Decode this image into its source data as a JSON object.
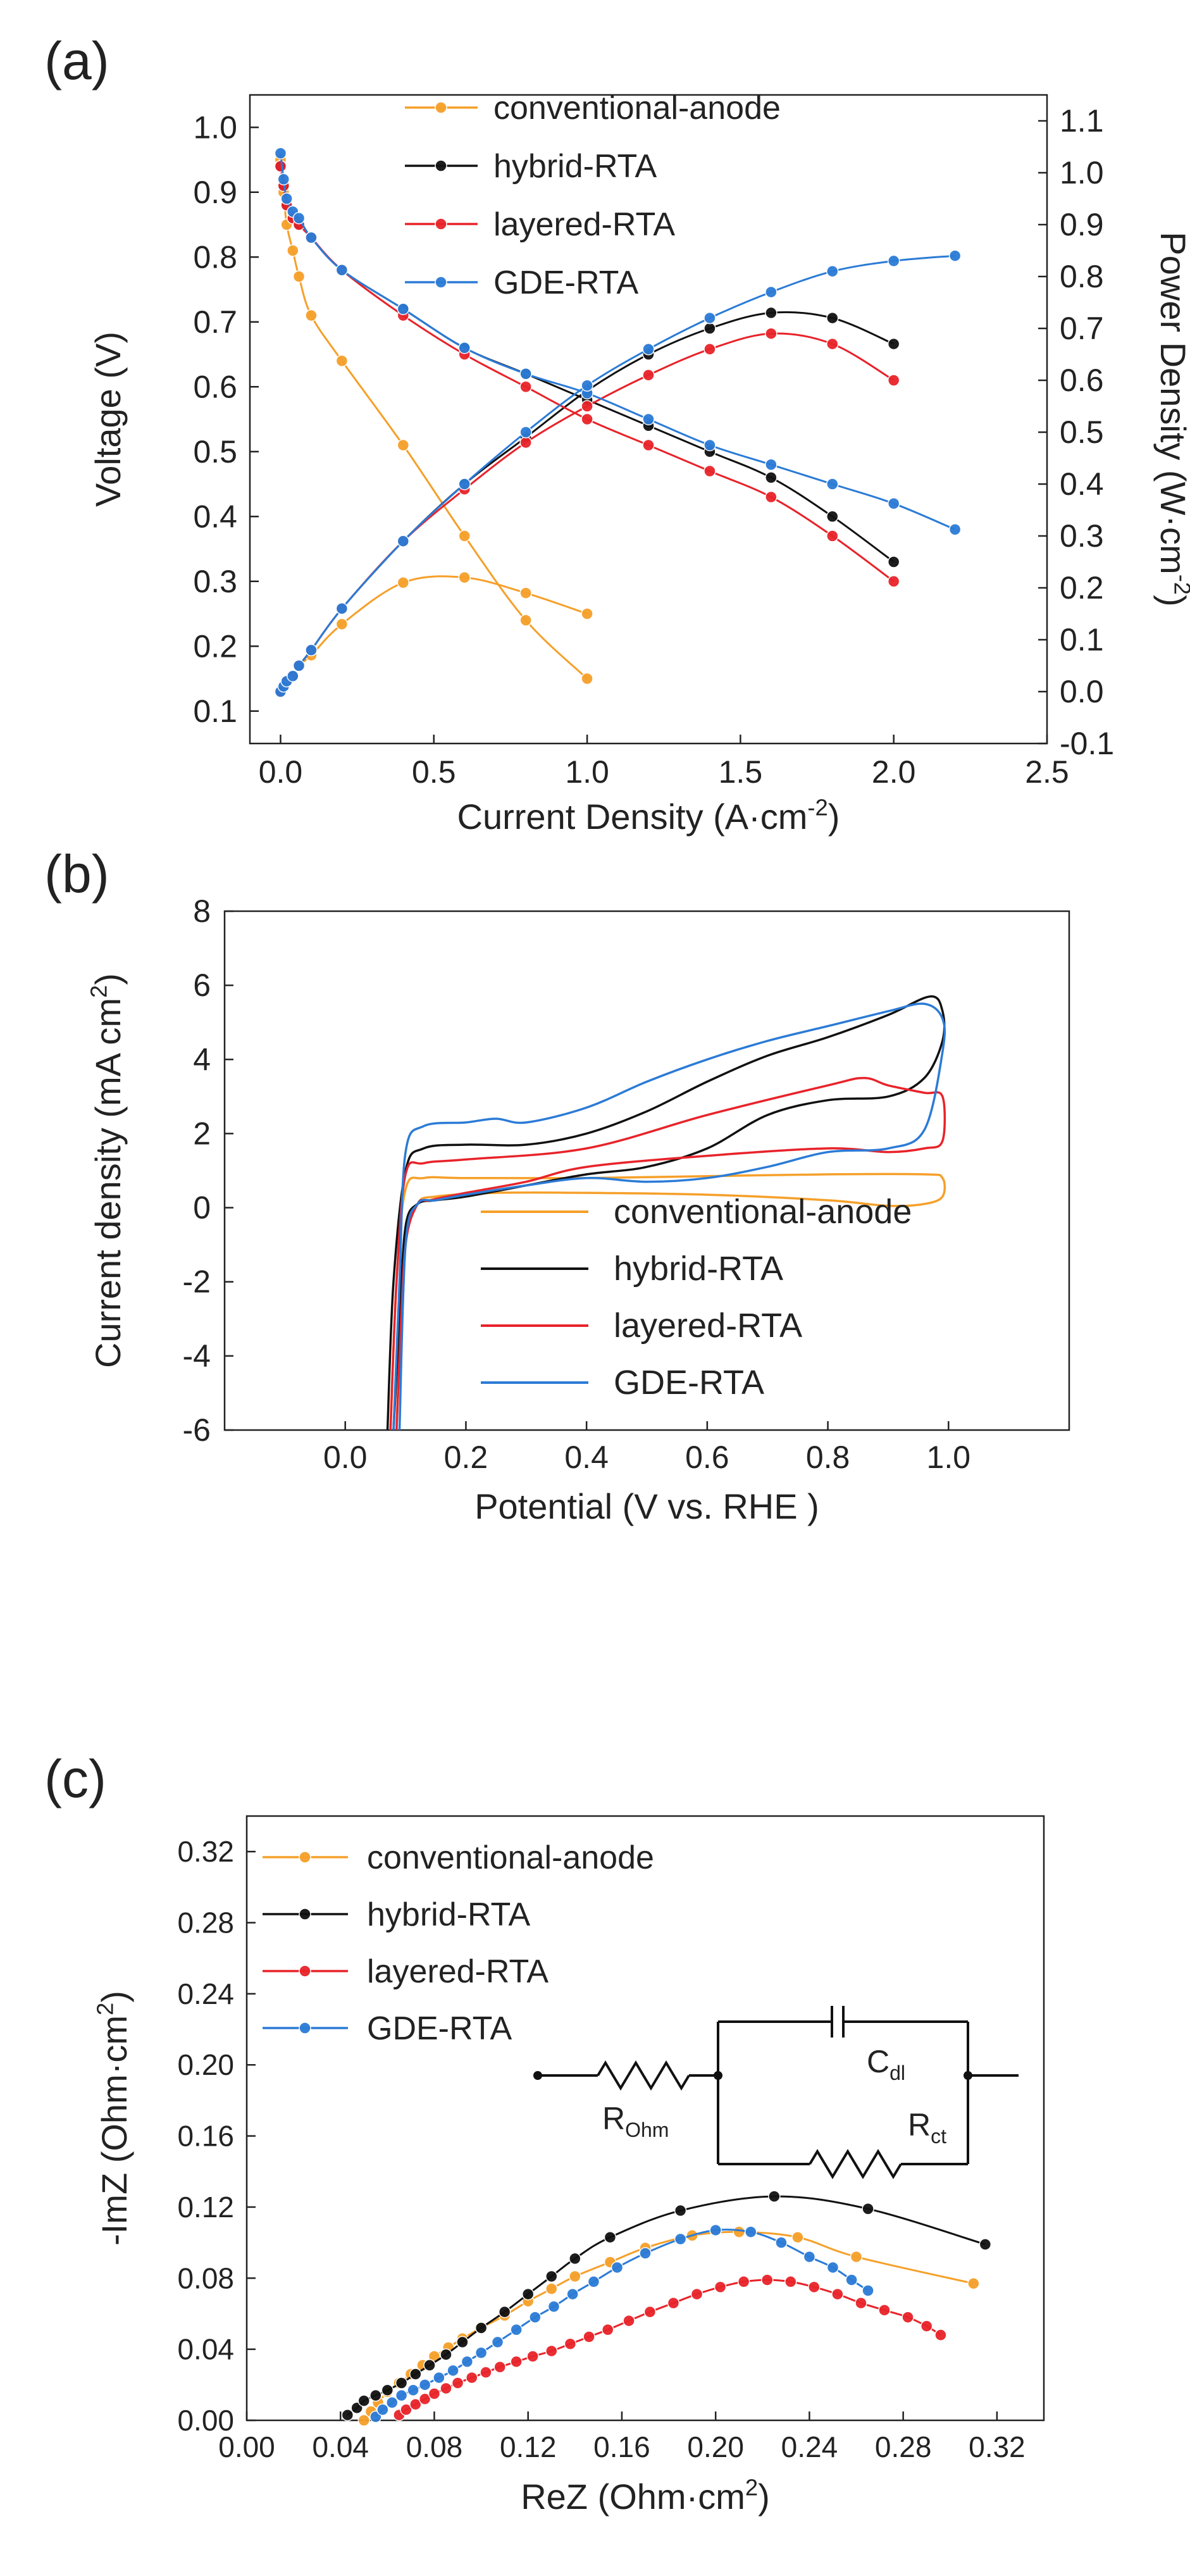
{
  "colors": {
    "orange": "#f5a02a",
    "black": "#111111",
    "red": "#e8232a",
    "blue": "#2b7bd6"
  },
  "chart_data": [
    {
      "panel_label": "(a)",
      "type": "line",
      "title": "",
      "xlabel": "Current Density (A·cm",
      "xlabel_sup": "-2",
      "xlabel_end": ")",
      "ylabel": "Voltage (V)",
      "y2label": "Power Density (W·cm",
      "y2label_sup": "-2",
      "y2label_end": ")",
      "xlim": [
        -0.1,
        2.5
      ],
      "ylim": [
        0.05,
        1.05
      ],
      "y2lim": [
        -0.1,
        1.15
      ],
      "x_ticks": [
        "0.0",
        "0.5",
        "1.0",
        "1.5",
        "2.0",
        "2.5"
      ],
      "y_ticks": [
        "0.1",
        "0.2",
        "0.3",
        "0.4",
        "0.5",
        "0.6",
        "0.7",
        "0.8",
        "0.9",
        "1.0"
      ],
      "y2_ticks": [
        "-0.1",
        "0.0",
        "0.1",
        "0.2",
        "0.3",
        "0.4",
        "0.5",
        "0.6",
        "0.7",
        "0.8",
        "0.9",
        "1.0",
        "1.1"
      ],
      "legend": [
        "conventional-anode",
        "hybrid-RTA",
        "layered-RTA",
        "GDE-RTA"
      ],
      "series": [
        {
          "name": "conventional-anode",
          "color": "orange",
          "voltage": {
            "x": [
              0,
              0.01,
              0.02,
              0.04,
              0.06,
              0.1,
              0.2,
              0.4,
              0.6,
              0.8,
              1.0
            ],
            "y": [
              0.95,
              0.9,
              0.85,
              0.81,
              0.77,
              0.71,
              0.64,
              0.51,
              0.37,
              0.24,
              0.15
            ]
          },
          "power": {
            "x": [
              0,
              0.01,
              0.02,
              0.04,
              0.06,
              0.1,
              0.2,
              0.4,
              0.6,
              0.8,
              1.0
            ],
            "y": [
              0,
              0.01,
              0.02,
              0.03,
              0.05,
              0.07,
              0.13,
              0.21,
              0.22,
              0.19,
              0.15
            ]
          }
        },
        {
          "name": "hybrid-RTA",
          "color": "black",
          "voltage": {
            "x": [
              0,
              0.01,
              0.02,
              0.04,
              0.06,
              0.1,
              0.2,
              0.4,
              0.6,
              0.8,
              1.0,
              1.2,
              1.4,
              1.6,
              1.8,
              2.0
            ],
            "y": [
              0.94,
              0.91,
              0.88,
              0.86,
              0.85,
              0.83,
              0.78,
              0.72,
              0.66,
              0.62,
              0.58,
              0.54,
              0.5,
              0.46,
              0.4,
              0.33
            ]
          },
          "power": {
            "x": [
              0,
              0.01,
              0.02,
              0.04,
              0.06,
              0.1,
              0.2,
              0.4,
              0.6,
              0.8,
              1.0,
              1.2,
              1.4,
              1.6,
              1.8,
              2.0
            ],
            "y": [
              0,
              0.01,
              0.02,
              0.03,
              0.05,
              0.08,
              0.16,
              0.29,
              0.4,
              0.49,
              0.58,
              0.65,
              0.7,
              0.73,
              0.72,
              0.67
            ]
          }
        },
        {
          "name": "layered-RTA",
          "color": "red",
          "voltage": {
            "x": [
              0,
              0.01,
              0.02,
              0.04,
              0.06,
              0.1,
              0.2,
              0.4,
              0.6,
              0.8,
              1.0,
              1.2,
              1.4,
              1.6,
              1.8,
              2.0
            ],
            "y": [
              0.94,
              0.91,
              0.88,
              0.86,
              0.85,
              0.83,
              0.78,
              0.71,
              0.65,
              0.6,
              0.55,
              0.51,
              0.47,
              0.43,
              0.37,
              0.3
            ]
          },
          "power": {
            "x": [
              0,
              0.01,
              0.02,
              0.04,
              0.06,
              0.1,
              0.2,
              0.4,
              0.6,
              0.8,
              1.0,
              1.2,
              1.4,
              1.6,
              1.8,
              2.0
            ],
            "y": [
              0,
              0.01,
              0.02,
              0.03,
              0.05,
              0.08,
              0.16,
              0.29,
              0.39,
              0.48,
              0.55,
              0.61,
              0.66,
              0.69,
              0.67,
              0.6
            ]
          }
        },
        {
          "name": "GDE-RTA",
          "color": "blue",
          "voltage": {
            "x": [
              0,
              0.01,
              0.02,
              0.04,
              0.06,
              0.1,
              0.2,
              0.4,
              0.6,
              0.8,
              1.0,
              1.2,
              1.4,
              1.6,
              1.8,
              2.0,
              2.2
            ],
            "y": [
              0.96,
              0.92,
              0.89,
              0.87,
              0.86,
              0.83,
              0.78,
              0.72,
              0.66,
              0.62,
              0.59,
              0.55,
              0.51,
              0.48,
              0.45,
              0.42,
              0.38
            ]
          },
          "power": {
            "x": [
              0,
              0.01,
              0.02,
              0.04,
              0.06,
              0.1,
              0.2,
              0.4,
              0.6,
              0.8,
              1.0,
              1.2,
              1.4,
              1.6,
              1.8,
              2.0,
              2.2
            ],
            "y": [
              0,
              0.01,
              0.02,
              0.03,
              0.05,
              0.08,
              0.16,
              0.29,
              0.4,
              0.5,
              0.59,
              0.66,
              0.72,
              0.77,
              0.81,
              0.83,
              0.84
            ]
          }
        }
      ]
    },
    {
      "panel_label": "(b)",
      "type": "line",
      "title": "",
      "xlabel": "Potential (V vs. RHE )",
      "ylabel": "Current density (mA cm",
      "ylabel_sup": "2",
      "ylabel_end": ")",
      "xlim": [
        -0.2,
        1.2
      ],
      "ylim": [
        -6,
        8
      ],
      "x_ticks": [
        "0.0",
        "0.2",
        "0.4",
        "0.6",
        "0.8",
        "1.0"
      ],
      "y_ticks": [
        "-6",
        "-4",
        "-2",
        "0",
        "2",
        "4",
        "6",
        "8"
      ],
      "legend": [
        "conventional-anode",
        "hybrid-RTA",
        "layered-RTA",
        "GDE-RTA"
      ],
      "series": [
        {
          "name": "conventional-anode",
          "color": "orange",
          "x": [
            0.075,
            0.085,
            0.1,
            0.13,
            0.2,
            0.4,
            0.6,
            0.8,
            0.96,
            0.99,
            0.99,
            0.96,
            0.9,
            0.8,
            0.6,
            0.4,
            0.25,
            0.15,
            0.12,
            0.1,
            0.09,
            0.085
          ],
          "y": [
            -6,
            -2,
            0.5,
            0.8,
            0.8,
            0.8,
            0.85,
            0.9,
            0.9,
            0.8,
            0.3,
            0.1,
            0.05,
            0.2,
            0.35,
            0.4,
            0.4,
            0.3,
            0.1,
            -1,
            -4,
            -6
          ]
        },
        {
          "name": "hybrid-RTA",
          "color": "black",
          "x": [
            0.07,
            0.08,
            0.1,
            0.13,
            0.2,
            0.3,
            0.4,
            0.5,
            0.6,
            0.7,
            0.8,
            0.9,
            0.97,
            0.99,
            0.99,
            0.96,
            0.9,
            0.8,
            0.7,
            0.6,
            0.5,
            0.4,
            0.3,
            0.2,
            0.15,
            0.12,
            0.1,
            0.09,
            0.08
          ],
          "y": [
            -6,
            -2,
            1.0,
            1.6,
            1.7,
            1.7,
            2.0,
            2.6,
            3.4,
            4.1,
            4.6,
            5.2,
            5.7,
            5.3,
            4.5,
            3.5,
            3.0,
            2.9,
            2.5,
            1.6,
            1.1,
            0.9,
            0.6,
            0.3,
            0.2,
            0.1,
            -0.5,
            -3,
            -6
          ]
        },
        {
          "name": "layered-RTA",
          "color": "red",
          "x": [
            0.075,
            0.085,
            0.1,
            0.13,
            0.2,
            0.4,
            0.6,
            0.8,
            0.86,
            0.9,
            0.96,
            0.99,
            0.99,
            0.96,
            0.9,
            0.8,
            0.6,
            0.4,
            0.3,
            0.2,
            0.14,
            0.12,
            0.1,
            0.09,
            0.085
          ],
          "y": [
            -6,
            -2,
            0.9,
            1.2,
            1.3,
            1.6,
            2.5,
            3.3,
            3.5,
            3.3,
            3.1,
            3.0,
            1.8,
            1.6,
            1.5,
            1.6,
            1.4,
            1.1,
            0.7,
            0.4,
            0.2,
            0.1,
            -1,
            -4,
            -6
          ]
        },
        {
          "name": "GDE-RTA",
          "color": "blue",
          "x": [
            0.08,
            0.09,
            0.1,
            0.13,
            0.2,
            0.25,
            0.3,
            0.4,
            0.5,
            0.6,
            0.7,
            0.8,
            0.9,
            0.96,
            0.99,
            0.99,
            0.96,
            0.9,
            0.8,
            0.7,
            0.6,
            0.5,
            0.4,
            0.3,
            0.2,
            0.15,
            0.12,
            0.1,
            0.09
          ],
          "y": [
            -6,
            -2,
            1.5,
            2.2,
            2.3,
            2.4,
            2.3,
            2.7,
            3.4,
            4.0,
            4.5,
            4.9,
            5.3,
            5.5,
            5.1,
            4.2,
            2.1,
            1.6,
            1.5,
            1.1,
            0.8,
            0.7,
            0.8,
            0.6,
            0.35,
            0.2,
            0.1,
            -1,
            -6
          ]
        }
      ]
    },
    {
      "panel_label": "(c)",
      "type": "scatter",
      "title": "",
      "xlabel": "ReZ  (Ohm·cm",
      "xlabel_sup": "2",
      "xlabel_end": ")",
      "ylabel": "-ImZ  (Ohm·cm",
      "ylabel_sup": "2",
      "ylabel_end": ")",
      "xlim": [
        0.0,
        0.34
      ],
      "ylim": [
        0.0,
        0.34
      ],
      "x_ticks": [
        "0.00",
        "0.04",
        "0.08",
        "0.12",
        "0.16",
        "0.20",
        "0.24",
        "0.28",
        "0.32"
      ],
      "y_ticks": [
        "0.00",
        "0.04",
        "0.08",
        "0.12",
        "0.16",
        "0.20",
        "0.24",
        "0.28",
        "0.32"
      ],
      "legend": [
        "conventional-anode",
        "hybrid-RTA",
        "layered-RTA",
        "GDE-RTA"
      ],
      "circuit_labels": {
        "c_dl": "C",
        "c_dl_sub": "dl",
        "r_ct": "R",
        "r_ct_sub": "ct",
        "r_ohm": "R",
        "r_ohm_sub": "Ohm"
      },
      "series": [
        {
          "name": "conventional-anode",
          "color": "orange",
          "x": [
            0.05,
            0.053,
            0.056,
            0.06,
            0.065,
            0.07,
            0.075,
            0.08,
            0.086,
            0.092,
            0.1,
            0.11,
            0.12,
            0.13,
            0.14,
            0.155,
            0.17,
            0.19,
            0.21,
            0.235,
            0.26,
            0.31
          ],
          "y": [
            0.0,
            0.005,
            0.01,
            0.016,
            0.021,
            0.026,
            0.031,
            0.036,
            0.041,
            0.046,
            0.052,
            0.059,
            0.067,
            0.074,
            0.081,
            0.089,
            0.097,
            0.104,
            0.106,
            0.103,
            0.092,
            0.077
          ]
        },
        {
          "name": "hybrid-RTA",
          "color": "black",
          "x": [
            0.043,
            0.047,
            0.05,
            0.055,
            0.06,
            0.066,
            0.072,
            0.078,
            0.085,
            0.092,
            0.1,
            0.11,
            0.12,
            0.13,
            0.14,
            0.155,
            0.185,
            0.225,
            0.265,
            0.315
          ],
          "y": [
            0.003,
            0.007,
            0.011,
            0.014,
            0.017,
            0.021,
            0.026,
            0.031,
            0.037,
            0.044,
            0.052,
            0.061,
            0.071,
            0.081,
            0.091,
            0.103,
            0.118,
            0.126,
            0.119,
            0.099
          ]
        },
        {
          "name": "layered-RTA",
          "color": "red",
          "x": [
            0.065,
            0.068,
            0.072,
            0.076,
            0.08,
            0.085,
            0.09,
            0.096,
            0.102,
            0.108,
            0.115,
            0.122,
            0.13,
            0.138,
            0.146,
            0.154,
            0.163,
            0.172,
            0.182,
            0.192,
            0.202,
            0.212,
            0.222,
            0.232,
            0.242,
            0.252,
            0.262,
            0.272,
            0.282,
            0.29,
            0.296
          ],
          "y": [
            0.003,
            0.006,
            0.009,
            0.012,
            0.015,
            0.018,
            0.021,
            0.024,
            0.027,
            0.03,
            0.033,
            0.036,
            0.039,
            0.043,
            0.047,
            0.051,
            0.056,
            0.061,
            0.066,
            0.071,
            0.075,
            0.078,
            0.079,
            0.078,
            0.075,
            0.071,
            0.066,
            0.062,
            0.058,
            0.053,
            0.048
          ]
        },
        {
          "name": "GDE-RTA",
          "color": "blue",
          "x": [
            0.055,
            0.058,
            0.062,
            0.066,
            0.071,
            0.076,
            0.082,
            0.088,
            0.094,
            0.1,
            0.107,
            0.115,
            0.123,
            0.131,
            0.139,
            0.148,
            0.158,
            0.17,
            0.185,
            0.2,
            0.215,
            0.228,
            0.24,
            0.25,
            0.258,
            0.265
          ],
          "y": [
            0.002,
            0.006,
            0.01,
            0.014,
            0.017,
            0.02,
            0.024,
            0.028,
            0.033,
            0.038,
            0.044,
            0.051,
            0.058,
            0.064,
            0.071,
            0.078,
            0.086,
            0.094,
            0.102,
            0.107,
            0.106,
            0.1,
            0.092,
            0.086,
            0.079,
            0.073
          ]
        }
      ]
    }
  ]
}
